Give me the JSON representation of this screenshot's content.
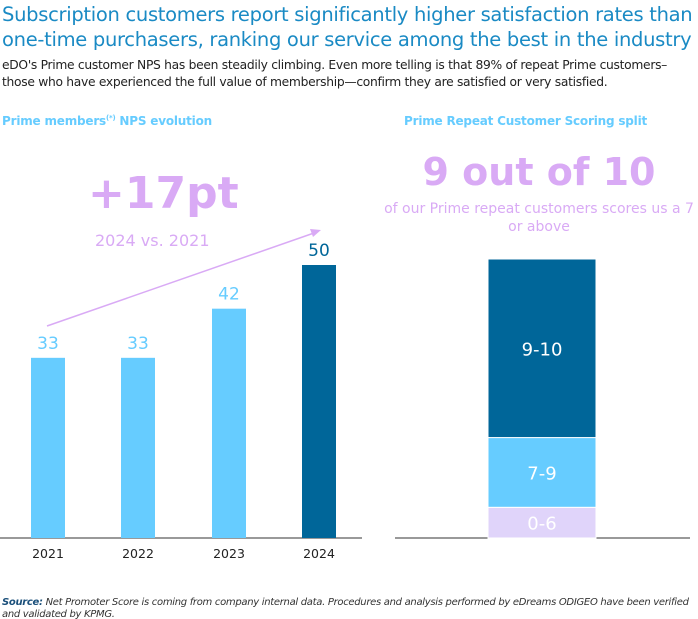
{
  "title": "Subscription customers report significantly higher satisfaction rates than one-time purchasers, ranking our service among the best in the industry",
  "subtitle": "eDO's Prime customer NPS has been steadily climbing. Even more telling is that 89% of repeat Prime customers–those who have experienced the full value of membership—confirm they are satisfied or very satisfied.",
  "left": {
    "heading": "Prime members",
    "heading_sup": "(*)",
    "heading_rest": " NPS evolution",
    "callout": "+17pt",
    "callout_sub": "2024 vs. 2021"
  },
  "right": {
    "heading": "Prime Repeat Customer Scoring split",
    "callout": "9 out of 10",
    "callout_sub": "of our Prime repeat customers scores us a 7 or above"
  },
  "source": {
    "label": "Source:",
    "text": " Net Promoter Score is coming from company internal data. Procedures and analysis performed by eDreams ODIGEO have been verified and validated by KPMG."
  },
  "colors": {
    "light": "#66ccff",
    "dark": "#006699",
    "purple": "#d9aaf5",
    "lavender": "#e0d4fa"
  },
  "chart_data": [
    {
      "type": "bar",
      "title": "Prime members NPS evolution",
      "categories": [
        "2021",
        "2022",
        "2023",
        "2024"
      ],
      "values": [
        33,
        33,
        42,
        50
      ],
      "labels": [
        "33",
        "33",
        "42",
        "50"
      ],
      "ylim": [
        0,
        50
      ]
    },
    {
      "type": "bar",
      "title": "Prime Repeat Customer Scoring split",
      "stacked": true,
      "series": [
        {
          "name": "0-6",
          "value": 11
        },
        {
          "name": "7-9",
          "value": 25
        },
        {
          "name": "9-10",
          "value": 64
        }
      ],
      "ylim": [
        0,
        100
      ]
    }
  ]
}
